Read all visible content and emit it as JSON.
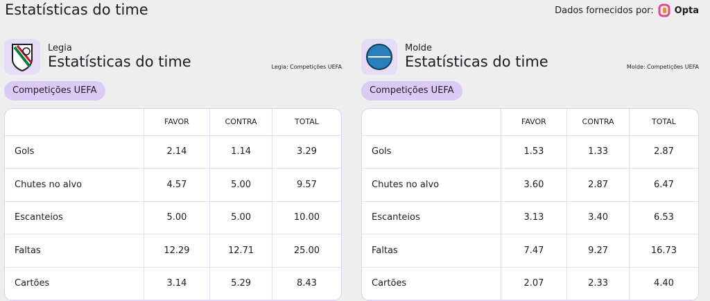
{
  "header": {
    "title": "Estatísticas do time",
    "provider": "Dados fornecidos por:",
    "provider_logo": "Opta"
  },
  "panels": [
    {
      "team": "Legia",
      "title": "Estatísticas do time",
      "source": "Legia: Competições UEFA",
      "pill": "Competições UEFA",
      "table": {
        "columns": [
          "FAVOR",
          "CONTRA",
          "TOTAL"
        ],
        "rows": [
          {
            "label": "Gols",
            "values": [
              "2.14",
              "1.14",
              "3.29"
            ]
          },
          {
            "label": "Chutes no alvo",
            "values": [
              "4.57",
              "5.00",
              "9.57"
            ]
          },
          {
            "label": "Escanteios",
            "values": [
              "5.00",
              "5.00",
              "10.00"
            ]
          },
          {
            "label": "Faltas",
            "values": [
              "12.29",
              "12.71",
              "25.00"
            ]
          },
          {
            "label": "Cartões",
            "values": [
              "3.14",
              "5.29",
              "8.43"
            ]
          }
        ]
      }
    },
    {
      "team": "Molde",
      "title": "Estatísticas do time",
      "source": "Molde: Competições UEFA",
      "pill": "Competições UEFA",
      "table": {
        "columns": [
          "FAVOR",
          "CONTRA",
          "TOTAL"
        ],
        "rows": [
          {
            "label": "Gols",
            "values": [
              "1.53",
              "1.33",
              "2.87"
            ]
          },
          {
            "label": "Chutes no alvo",
            "values": [
              "3.60",
              "2.87",
              "6.47"
            ]
          },
          {
            "label": "Escanteios",
            "values": [
              "3.13",
              "3.40",
              "6.53"
            ]
          },
          {
            "label": "Faltas",
            "values": [
              "7.47",
              "9.27",
              "16.73"
            ]
          },
          {
            "label": "Cartões",
            "values": [
              "2.07",
              "2.33",
              "4.40"
            ]
          }
        ]
      }
    }
  ]
}
